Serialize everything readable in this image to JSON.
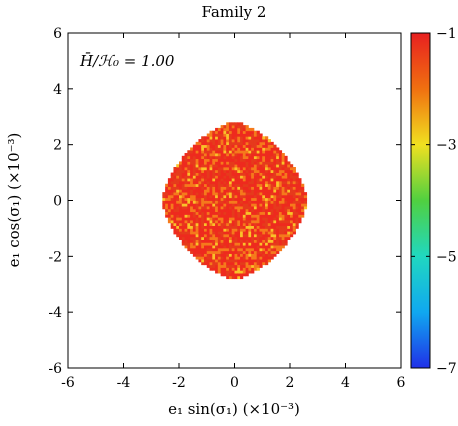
{
  "chart_data": {
    "type": "heatmap",
    "title": "Family 2",
    "annotation": "H̄/ℋ₀ = 1.00",
    "xlabel": "e₁ sin(σ₁) (×10⁻³)",
    "ylabel": "e₁ cos(σ₁) (×10⁻³)",
    "xlim": [
      -6,
      6
    ],
    "ylim": [
      -6,
      6
    ],
    "xticks": [
      "-6",
      "-4",
      "-2",
      "0",
      "2",
      "4",
      "6"
    ],
    "yticks": [
      "-6",
      "-4",
      "-2",
      "0",
      "2",
      "4",
      "6"
    ],
    "colorbar": {
      "range": [
        -7,
        -1
      ],
      "ticks": [
        "−1",
        "−3",
        "−5",
        "−7"
      ],
      "tick_values": [
        -1,
        -3,
        -5,
        -7
      ],
      "colormap": [
        "#2030e8",
        "#10a8f0",
        "#20d8c0",
        "#50d040",
        "#f0e020",
        "#f07010",
        "#e82020"
      ]
    },
    "region": {
      "shape": "rounded-diamond",
      "x_extent": [
        -2.6,
        2.6
      ],
      "y_extent": [
        -2.8,
        2.8
      ],
      "cell_size": 0.1,
      "value_range": [
        -1.5,
        -1.0
      ],
      "dominant_color": "#ee2a1e",
      "speckle_colors": [
        "#f57a1c",
        "#f9c22a"
      ]
    },
    "grid": false
  }
}
